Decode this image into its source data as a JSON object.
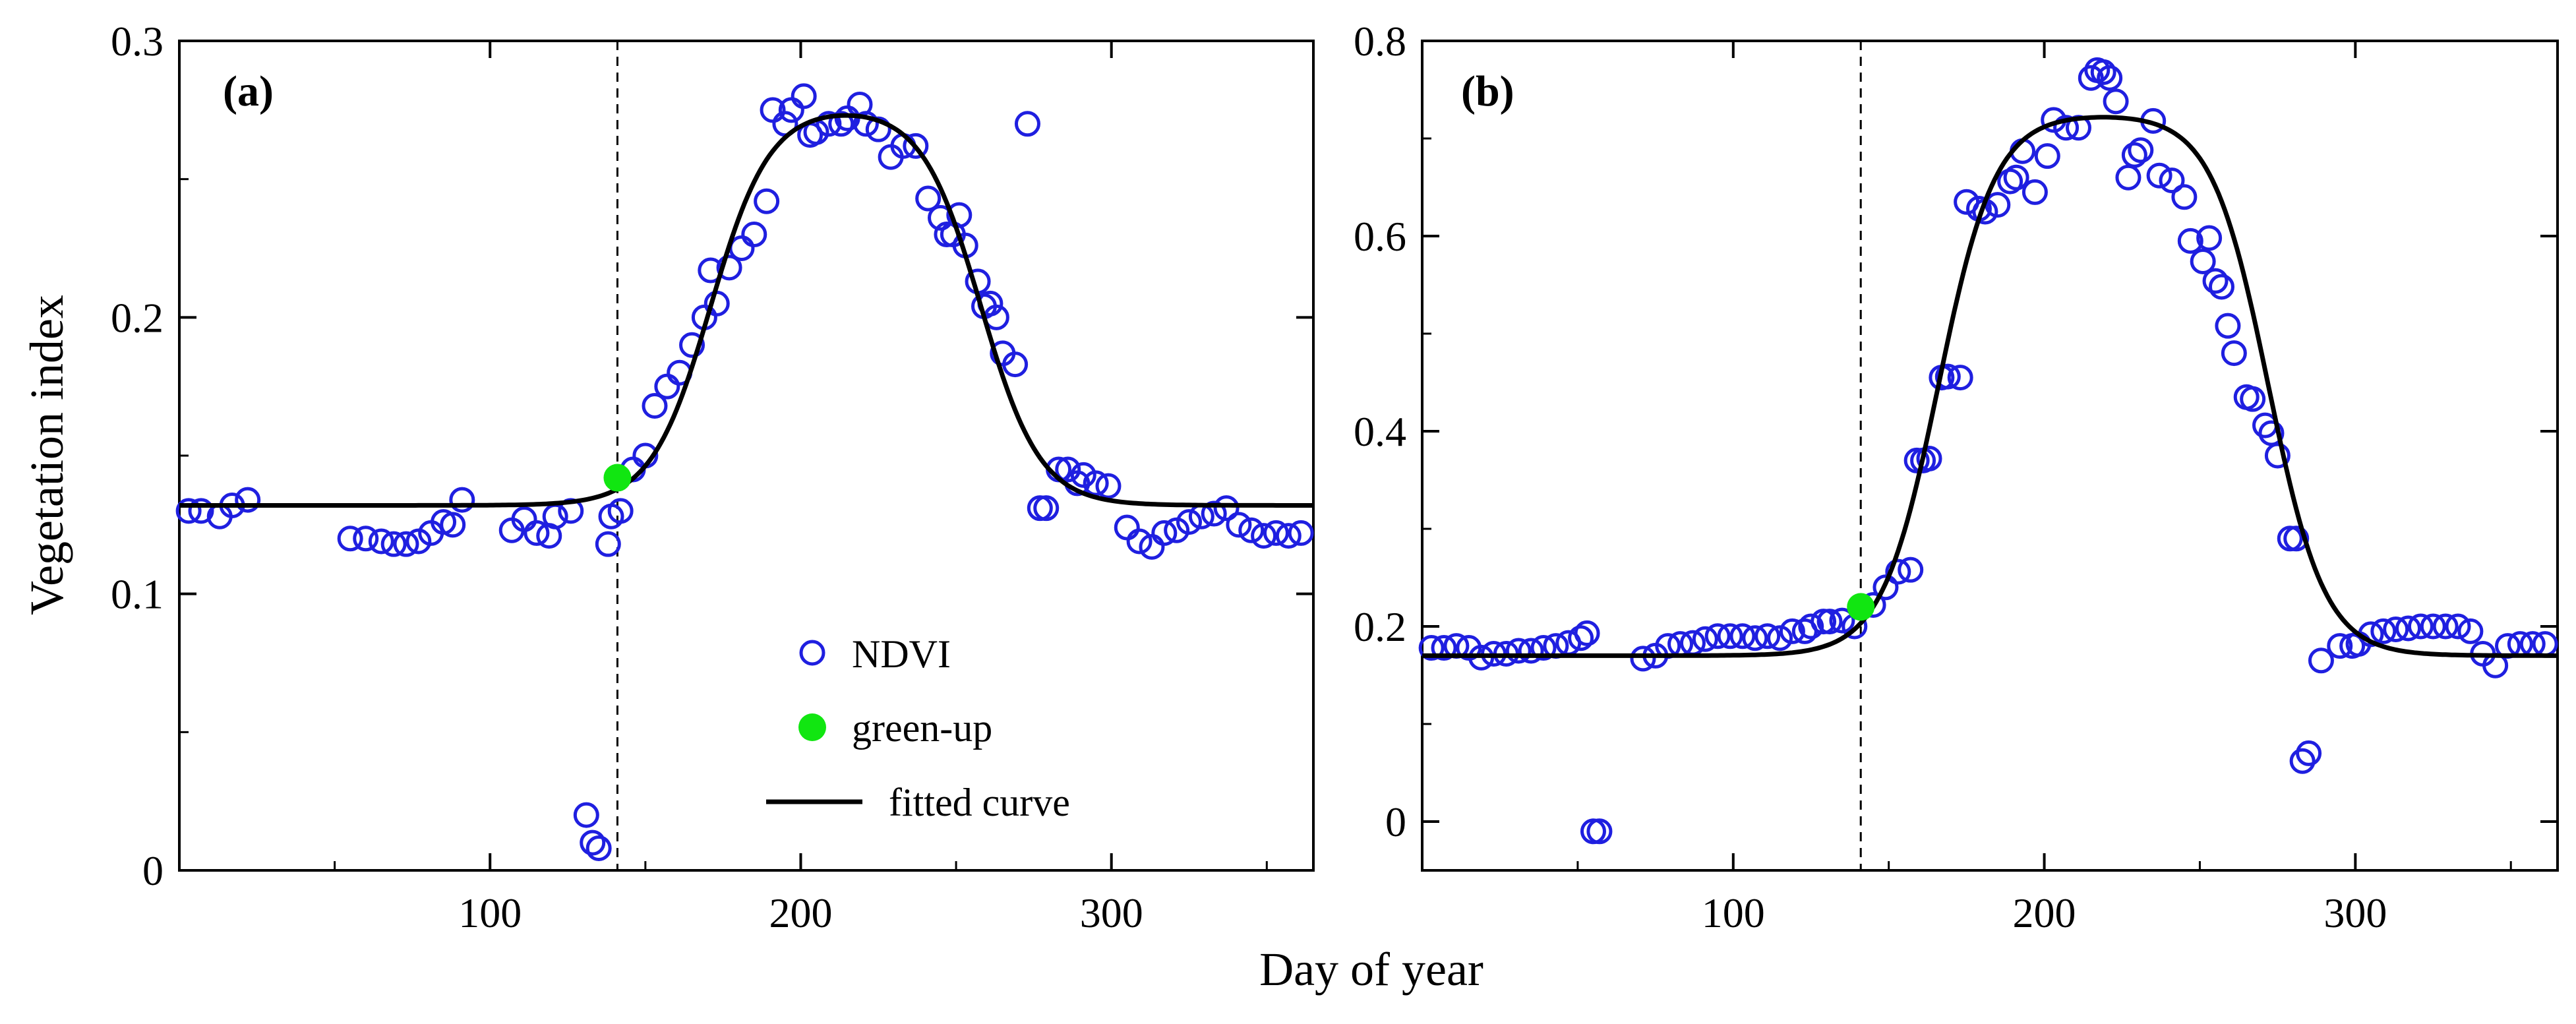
{
  "figure": {
    "xlabel": "Day of year",
    "ylabel": "Vegetation index"
  },
  "legend": {
    "ndvi": "NDVI",
    "greenup": "green-up",
    "fitted": "fitted curve"
  },
  "colors": {
    "ndvi": "#1f1fe0",
    "greenup": "#11e611",
    "curve": "#000000"
  },
  "chart_data": [
    {
      "type": "scatter",
      "panel_label": "(a)",
      "xlim": [
        0,
        365
      ],
      "ylim": [
        0,
        0.3
      ],
      "xticks": [
        100,
        200,
        300
      ],
      "xtick_labels": [
        "100",
        "200",
        "300"
      ],
      "yticks": [
        0,
        0.1,
        0.2,
        0.3
      ],
      "ytick_labels": [
        "0",
        "0.1",
        "0.2",
        "0.3"
      ],
      "greenup_doy": 141,
      "greenup_value": 0.142,
      "curve": {
        "base": 0.132,
        "amp": 0.144,
        "sos": 171,
        "r1": 0.105,
        "eos": 258,
        "r2": 0.105
      },
      "ndvi": {
        "x": [
          3,
          7,
          13,
          17,
          22,
          55,
          60,
          65,
          69,
          73,
          77,
          81,
          85,
          88,
          91,
          107,
          111,
          115,
          119,
          121,
          126,
          131,
          133,
          135,
          138,
          139,
          142,
          146,
          150,
          153,
          157,
          161,
          165,
          169,
          171,
          173,
          177,
          181,
          185,
          189,
          191,
          195,
          197,
          201,
          203,
          205,
          209,
          213,
          215,
          219,
          221,
          225,
          229,
          233,
          237,
          241,
          245,
          247,
          249,
          251,
          253,
          257,
          259,
          261,
          263,
          265,
          269,
          273,
          277,
          279,
          283,
          286,
          289,
          291,
          295,
          299,
          305,
          309,
          313,
          317,
          321,
          325,
          329,
          333,
          337,
          341,
          345,
          349,
          353,
          357,
          361
        ],
        "y": [
          0.13,
          0.13,
          0.128,
          0.132,
          0.134,
          0.12,
          0.12,
          0.119,
          0.118,
          0.118,
          0.119,
          0.122,
          0.126,
          0.125,
          0.134,
          0.123,
          0.127,
          0.122,
          0.121,
          0.128,
          0.13,
          0.02,
          0.01,
          0.008,
          0.118,
          0.128,
          0.13,
          0.145,
          0.15,
          0.168,
          0.175,
          0.18,
          0.19,
          0.2,
          0.217,
          0.205,
          0.218,
          0.225,
          0.23,
          0.242,
          0.275,
          0.27,
          0.275,
          0.28,
          0.266,
          0.267,
          0.27,
          0.27,
          0.272,
          0.277,
          0.27,
          0.268,
          0.258,
          0.262,
          0.262,
          0.243,
          0.236,
          0.23,
          0.23,
          0.237,
          0.226,
          0.213,
          0.204,
          0.205,
          0.2,
          0.187,
          0.183,
          0.27,
          0.131,
          0.131,
          0.145,
          0.145,
          0.14,
          0.143,
          0.14,
          0.139,
          0.124,
          0.119,
          0.117,
          0.122,
          0.123,
          0.126,
          0.128,
          0.129,
          0.131,
          0.125,
          0.123,
          0.121,
          0.122,
          0.121,
          0.122
        ]
      }
    },
    {
      "type": "scatter",
      "panel_label": "(b)",
      "xlim": [
        0,
        365
      ],
      "ylim": [
        -0.05,
        0.8
      ],
      "xticks": [
        100,
        200,
        300
      ],
      "xtick_labels": [
        "100",
        "200",
        "300"
      ],
      "yticks": [
        0,
        0.2,
        0.4,
        0.6,
        0.8
      ],
      "ytick_labels": [
        "0",
        "0.2",
        "0.4",
        "0.6",
        "0.8"
      ],
      "greenup_doy": 141,
      "greenup_value": 0.22,
      "curve": {
        "base": 0.17,
        "amp": 0.555,
        "sos": 166,
        "r1": 0.11,
        "eos": 272,
        "r2": 0.11
      },
      "ndvi": {
        "x": [
          3,
          7,
          11,
          15,
          19,
          23,
          27,
          31,
          35,
          39,
          43,
          47,
          51,
          53,
          55,
          57,
          71,
          75,
          79,
          83,
          87,
          91,
          95,
          99,
          103,
          107,
          111,
          115,
          119,
          123,
          125,
          129,
          131,
          135,
          139,
          145,
          149,
          153,
          157,
          159,
          161,
          163,
          167,
          169,
          173,
          175,
          179,
          181,
          185,
          189,
          191,
          193,
          197,
          201,
          203,
          207,
          211,
          215,
          217,
          219,
          221,
          223,
          227,
          229,
          231,
          235,
          237,
          241,
          245,
          247,
          251,
          253,
          255,
          257,
          259,
          261,
          265,
          267,
          271,
          273,
          275,
          279,
          281,
          283,
          285,
          289,
          295,
          299,
          301,
          305,
          309,
          313,
          317,
          321,
          325,
          329,
          333,
          337,
          341,
          345,
          349,
          353,
          357,
          361
        ],
        "y": [
          0.178,
          0.178,
          0.18,
          0.178,
          0.168,
          0.172,
          0.172,
          0.175,
          0.175,
          0.178,
          0.18,
          0.183,
          0.188,
          0.193,
          -0.01,
          -0.01,
          0.167,
          0.17,
          0.18,
          0.182,
          0.183,
          0.187,
          0.19,
          0.19,
          0.19,
          0.188,
          0.19,
          0.188,
          0.195,
          0.195,
          0.2,
          0.205,
          0.205,
          0.206,
          0.2,
          0.222,
          0.24,
          0.256,
          0.258,
          0.37,
          0.37,
          0.372,
          0.455,
          0.456,
          0.455,
          0.635,
          0.628,
          0.625,
          0.632,
          0.656,
          0.66,
          0.687,
          0.645,
          0.682,
          0.719,
          0.711,
          0.711,
          0.762,
          0.77,
          0.768,
          0.762,
          0.738,
          0.66,
          0.683,
          0.688,
          0.718,
          0.662,
          0.657,
          0.64,
          0.595,
          0.574,
          0.598,
          0.554,
          0.548,
          0.508,
          0.48,
          0.435,
          0.433,
          0.406,
          0.398,
          0.375,
          0.29,
          0.29,
          0.062,
          0.07,
          0.165,
          0.18,
          0.18,
          0.182,
          0.192,
          0.195,
          0.197,
          0.198,
          0.2,
          0.2,
          0.2,
          0.2,
          0.195,
          0.172,
          0.16,
          0.18,
          0.182,
          0.182,
          0.182
        ]
      }
    }
  ]
}
